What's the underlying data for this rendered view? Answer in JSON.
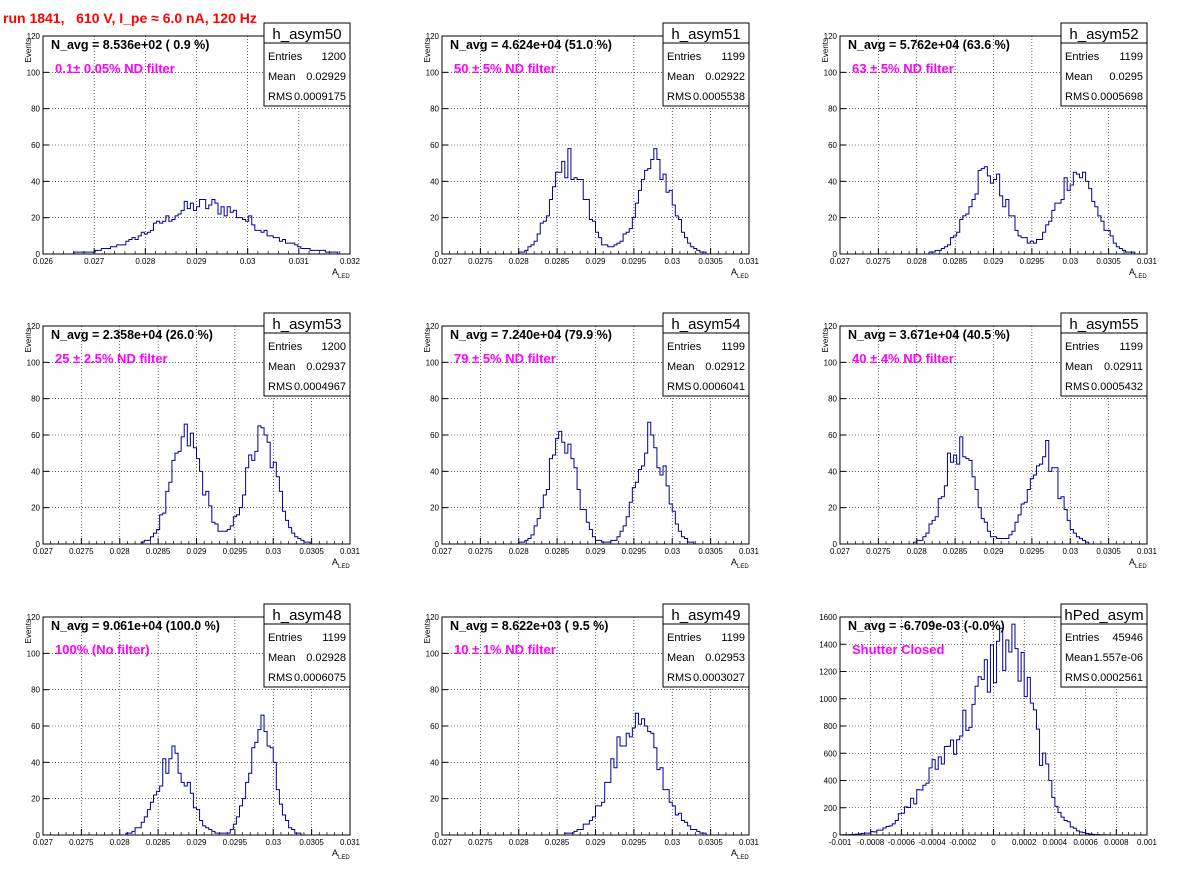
{
  "run_title": "run 1841,   610 V, I_pe ≈ 6.0 nA, 120 Hz",
  "colors": {
    "histogram": "#000099",
    "annotation": "#ff00ff",
    "title": "#ff0000"
  },
  "chart_data": [
    {
      "type": "bar",
      "histname": "h_asym50",
      "navg": "N_avg = 8.536e+02 ( 0.9 %)",
      "filter": "0.1± 0.05% ND filter",
      "entries_label": "Entries",
      "mean_label": "Mean",
      "rms_label": "RMS",
      "entries": "1200",
      "mean": "0.02929",
      "rms": "0.0009175",
      "ylabel": "Events",
      "xlabel": "A",
      "xlabel_sub": "LED",
      "xlim": [
        0.026,
        0.032
      ],
      "ylim": [
        0,
        120
      ],
      "xticks": [
        "0.026",
        "0.027",
        "0.028",
        "0.029",
        "0.03",
        "0.031",
        "0.032"
      ],
      "yticks": [
        "0",
        "20",
        "40",
        "60",
        "80",
        "100",
        "120"
      ],
      "grid": true,
      "shape": [
        {
          "mu": 0.0292,
          "sigma": 0.00093,
          "amp": 27
        }
      ]
    },
    {
      "type": "bar",
      "histname": "h_asym51",
      "navg": "N_avg = 4.624e+04 (51.0 %)",
      "filter": "50 ± 5% ND filter",
      "entries_label": "Entries",
      "mean_label": "Mean",
      "rms_label": "RMS",
      "entries": "1199",
      "mean": "0.02922",
      "rms": "0.0005538",
      "ylabel": "Events",
      "xlabel": "A",
      "xlabel_sub": "LED",
      "xlim": [
        0.027,
        0.031
      ],
      "ylim": [
        0,
        120
      ],
      "xticks": [
        "0.027",
        "0.0275",
        "0.028",
        "0.0285",
        "0.029",
        "0.0295",
        "0.03",
        "0.0305",
        "0.031"
      ],
      "yticks": [
        "0",
        "20",
        "40",
        "60",
        "80",
        "100",
        "120"
      ],
      "grid": true,
      "shape": [
        {
          "mu": 0.02865,
          "sigma": 0.00022,
          "amp": 50
        },
        {
          "mu": 0.02978,
          "sigma": 0.00022,
          "amp": 50
        }
      ]
    },
    {
      "type": "bar",
      "histname": "h_asym52",
      "navg": "N_avg = 5.762e+04 (63.6 %)",
      "filter": "63 ± 5% ND filter",
      "entries_label": "Entries",
      "mean_label": "Mean",
      "rms_label": "RMS",
      "entries": "1199",
      "mean": "0.0295",
      "rms": "0.0005698",
      "ylabel": "Events",
      "xlabel": "A",
      "xlabel_sub": "LED",
      "xlim": [
        0.027,
        0.031
      ],
      "ylim": [
        0,
        120
      ],
      "xticks": [
        "0.027",
        "0.0275",
        "0.028",
        "0.0285",
        "0.029",
        "0.0295",
        "0.03",
        "0.0305",
        "0.031"
      ],
      "yticks": [
        "0",
        "20",
        "40",
        "60",
        "80",
        "100",
        "120"
      ],
      "grid": true,
      "shape": [
        {
          "mu": 0.02892,
          "sigma": 0.00025,
          "amp": 45
        },
        {
          "mu": 0.03008,
          "sigma": 0.00025,
          "amp": 45
        }
      ]
    },
    {
      "type": "bar",
      "histname": "h_asym53",
      "navg": "N_avg = 2.358e+04 (26.0 %)",
      "filter": "25 ± 2.5% ND filter",
      "entries_label": "Entries",
      "mean_label": "Mean",
      "rms_label": "RMS",
      "entries": "1200",
      "mean": "0.02937",
      "rms": "0.0004967",
      "ylabel": "Events",
      "xlabel": "A",
      "xlabel_sub": "LED",
      "xlim": [
        0.027,
        0.031
      ],
      "ylim": [
        0,
        120
      ],
      "xticks": [
        "0.027",
        "0.0275",
        "0.028",
        "0.0285",
        "0.029",
        "0.0295",
        "0.03",
        "0.0305",
        "0.031"
      ],
      "yticks": [
        "0",
        "20",
        "40",
        "60",
        "80",
        "100",
        "120"
      ],
      "grid": true,
      "shape": [
        {
          "mu": 0.02888,
          "sigma": 0.0002,
          "amp": 58
        },
        {
          "mu": 0.02985,
          "sigma": 0.0002,
          "amp": 58
        }
      ]
    },
    {
      "type": "bar",
      "histname": "h_asym54",
      "navg": "N_avg = 7.240e+04 (79.9 %)",
      "filter": "79 ± 5% ND filter",
      "entries_label": "Entries",
      "mean_label": "Mean",
      "rms_label": "RMS",
      "entries": "1199",
      "mean": "0.02912",
      "rms": "0.0006041",
      "ylabel": "Events",
      "xlabel": "A",
      "xlabel_sub": "LED",
      "xlim": [
        0.027,
        0.031
      ],
      "ylim": [
        0,
        120
      ],
      "xticks": [
        "0.027",
        "0.0275",
        "0.028",
        "0.0285",
        "0.029",
        "0.0295",
        "0.03",
        "0.0305",
        "0.031"
      ],
      "yticks": [
        "0",
        "20",
        "40",
        "60",
        "80",
        "100",
        "120"
      ],
      "grid": true,
      "shape": [
        {
          "mu": 0.02857,
          "sigma": 0.00018,
          "amp": 60
        },
        {
          "mu": 0.02972,
          "sigma": 0.00018,
          "amp": 60
        }
      ]
    },
    {
      "type": "bar",
      "histname": "h_asym55",
      "navg": "N_avg = 3.671e+04 (40.5 %)",
      "filter": "40 ± 4% ND filter",
      "entries_label": "Entries",
      "mean_label": "Mean",
      "rms_label": "RMS",
      "entries": "1199",
      "mean": "0.02911",
      "rms": "0.0005432",
      "ylabel": "Events",
      "xlabel": "A",
      "xlabel_sub": "LED",
      "xlim": [
        0.027,
        0.031
      ],
      "ylim": [
        0,
        120
      ],
      "xticks": [
        "0.027",
        "0.0275",
        "0.028",
        "0.0285",
        "0.029",
        "0.0295",
        "0.03",
        "0.0305",
        "0.031"
      ],
      "yticks": [
        "0",
        "20",
        "40",
        "60",
        "80",
        "100",
        "120"
      ],
      "grid": true,
      "shape": [
        {
          "mu": 0.02855,
          "sigma": 0.0002,
          "amp": 52
        },
        {
          "mu": 0.02965,
          "sigma": 0.0002,
          "amp": 52
        }
      ]
    },
    {
      "type": "bar",
      "histname": "h_asym48",
      "navg": "N_avg = 9.061e+04 (100.0 %)",
      "filter": "100% (No filter)",
      "entries_label": "Entries",
      "mean_label": "Mean",
      "rms_label": "RMS",
      "entries": "1199",
      "mean": "0.02928",
      "rms": "0.0006075",
      "ylabel": "Events",
      "xlabel": "A",
      "xlabel_sub": "LED",
      "xlim": [
        0.027,
        0.031
      ],
      "ylim": [
        0,
        120
      ],
      "xticks": [
        "0.027",
        "0.0275",
        "0.028",
        "0.0285",
        "0.029",
        "0.0295",
        "0.03",
        "0.0305",
        "0.031"
      ],
      "yticks": [
        "0",
        "20",
        "40",
        "60",
        "80",
        "100",
        "120"
      ],
      "grid": true,
      "shape": [
        {
          "mu": 0.02869,
          "sigma": 0.00021,
          "amp": 42
        },
        {
          "mu": 0.02985,
          "sigma": 0.00016,
          "amp": 60
        }
      ]
    },
    {
      "type": "bar",
      "histname": "h_asym49",
      "navg": "N_avg = 8.622e+03 ( 9.5 %)",
      "filter": "10 ± 1% ND filter",
      "entries_label": "Entries",
      "mean_label": "Mean",
      "rms_label": "RMS",
      "entries": "1199",
      "mean": "0.02953",
      "rms": "0.0003027",
      "ylabel": "Events",
      "xlabel": "A",
      "xlabel_sub": "LED",
      "xlim": [
        0.027,
        0.031
      ],
      "ylim": [
        0,
        120
      ],
      "xticks": [
        "0.027",
        "0.0275",
        "0.028",
        "0.0285",
        "0.029",
        "0.0295",
        "0.03",
        "0.0305",
        "0.031"
      ],
      "yticks": [
        "0",
        "20",
        "40",
        "60",
        "80",
        "100",
        "120"
      ],
      "grid": true,
      "shape": [
        {
          "mu": 0.02953,
          "sigma": 0.0003,
          "amp": 62
        }
      ]
    },
    {
      "type": "bar",
      "histname": "hPed_asym",
      "navg": "N_avg = -6.709e-03 (-0.0%)",
      "filter": "Shutter Closed",
      "entries_label": "Entries",
      "mean_label": "Mean",
      "rms_label": "RMS",
      "entries": "45946",
      "mean": "-1.557e-06",
      "rms": "0.0002561",
      "ylabel": "",
      "xlabel": "",
      "xlabel_sub": "",
      "xlim": [
        -0.001,
        0.001
      ],
      "ylim": [
        0,
        1600
      ],
      "xticks": [
        "-0.001",
        "-0.0008",
        "-0.0006",
        "-0.0004",
        "-0.0002",
        "0",
        "0.0002",
        "0.0004",
        "0.0006",
        "0.0008",
        "0.001"
      ],
      "yticks": [
        "0",
        "200",
        "400",
        "600",
        "800",
        "1000",
        "1200",
        "1400",
        "1600"
      ],
      "grid": true,
      "shape": [
        {
          "mu": 0.00012,
          "sigma": 0.00016,
          "amp": 1180
        },
        {
          "mu": -0.00022,
          "sigma": 0.00022,
          "amp": 640
        }
      ]
    }
  ]
}
